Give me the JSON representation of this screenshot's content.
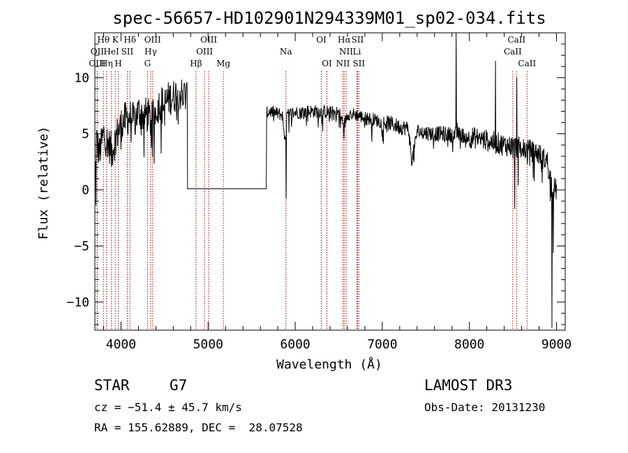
{
  "chart_data": {
    "type": "line",
    "title": "spec-56657-HD102901N294339M01_sp02-034.fits",
    "xlabel": "Wavelength (Å)",
    "ylabel": "Flux (relative)",
    "xlim": [
      3700,
      9100
    ],
    "ylim": [
      -12.5,
      14
    ],
    "x_ticks": [
      4000,
      5000,
      6000,
      7000,
      8000,
      9000
    ],
    "y_ticks": [
      -10,
      -5,
      0,
      5,
      10
    ],
    "x_tick_labels": [
      "4000",
      "5000",
      "6000",
      "7000",
      "8000",
      "9000"
    ],
    "y_tick_labels": [
      "−10",
      "−5",
      "0",
      "5",
      "10"
    ],
    "grid": false,
    "line_color": "#000000",
    "marker_color": "#a00000",
    "spectrum_anchors": [
      [
        3700,
        0.3
      ],
      [
        3720,
        4.5
      ],
      [
        3750,
        3.2
      ],
      [
        3800,
        5.0
      ],
      [
        3850,
        4.1
      ],
      [
        3900,
        3.5
      ],
      [
        3950,
        4.9
      ],
      [
        4000,
        5.8
      ],
      [
        4050,
        6.3
      ],
      [
        4100,
        6.5
      ],
      [
        4150,
        6.2
      ],
      [
        4200,
        7.0
      ],
      [
        4250,
        6.6
      ],
      [
        4300,
        6.8
      ],
      [
        4350,
        6.2
      ],
      [
        4400,
        7.1
      ],
      [
        4450,
        7.8
      ],
      [
        4500,
        7.6
      ],
      [
        4550,
        8.2
      ],
      [
        4600,
        8.3
      ],
      [
        4650,
        8.7
      ],
      [
        4700,
        8.5
      ],
      [
        4760,
        8.3
      ],
      [
        4762,
        0.1
      ],
      [
        5670,
        0.1
      ],
      [
        5672,
        6.8
      ],
      [
        5700,
        7.0
      ],
      [
        5750,
        6.9
      ],
      [
        5800,
        6.8
      ],
      [
        5850,
        6.7
      ],
      [
        5892,
        4.0
      ],
      [
        5895,
        -0.8
      ],
      [
        5900,
        6.6
      ],
      [
        5950,
        6.8
      ],
      [
        6000,
        6.9
      ],
      [
        6100,
        7.0
      ],
      [
        6200,
        7.0
      ],
      [
        6300,
        7.0
      ],
      [
        6400,
        6.9
      ],
      [
        6500,
        6.9
      ],
      [
        6563,
        5.8
      ],
      [
        6600,
        6.8
      ],
      [
        6700,
        6.7
      ],
      [
        6800,
        6.4
      ],
      [
        6900,
        6.3
      ],
      [
        7000,
        6.0
      ],
      [
        7100,
        5.9
      ],
      [
        7200,
        5.6
      ],
      [
        7300,
        5.5
      ],
      [
        7340,
        2.5
      ],
      [
        7400,
        5.2
      ],
      [
        7500,
        5.1
      ],
      [
        7600,
        5.0
      ],
      [
        7700,
        5.0
      ],
      [
        7800,
        4.9
      ],
      [
        7850,
        5.0
      ],
      [
        7900,
        4.9
      ],
      [
        8000,
        4.7
      ],
      [
        8100,
        4.6
      ],
      [
        8200,
        4.4
      ],
      [
        8300,
        4.2
      ],
      [
        8400,
        4.0
      ],
      [
        8500,
        3.9
      ],
      [
        8600,
        3.7
      ],
      [
        8700,
        3.5
      ],
      [
        8800,
        3.2
      ],
      [
        8850,
        2.8
      ],
      [
        8900,
        2.5
      ],
      [
        8950,
        0.3
      ],
      [
        9000,
        0.0
      ]
    ],
    "spectrum_spikes": [
      [
        3712,
        -1.4
      ],
      [
        3890,
        2.1
      ],
      [
        4000,
        3.6
      ],
      [
        4300,
        5.2
      ],
      [
        4340,
        4.8
      ],
      [
        5895,
        -0.8
      ],
      [
        6520,
        5.5
      ],
      [
        6880,
        4.3
      ],
      [
        7340,
        2.4
      ],
      [
        7850,
        14.0
      ],
      [
        7860,
        6.0
      ],
      [
        8300,
        11.5
      ],
      [
        8500,
        2.8
      ],
      [
        8520,
        -1.7
      ],
      [
        8545,
        10.0
      ],
      [
        8560,
        0.4
      ],
      [
        8665,
        2.3
      ],
      [
        8860,
        2.6
      ],
      [
        8930,
        -1.0
      ],
      [
        8950,
        -12.3
      ],
      [
        8965,
        -5.6
      ],
      [
        8985,
        0.2
      ]
    ],
    "line_markers": [
      {
        "label": "Hθ",
        "x": 3798,
        "row": 1
      },
      {
        "label": "OII",
        "x": 3727,
        "row": 2
      },
      {
        "label": "OIII",
        "x": 3727,
        "row": 3
      },
      {
        "label": "K",
        "x": 3934,
        "row": 1
      },
      {
        "label": "HeI",
        "x": 3889,
        "row": 2
      },
      {
        "label": "Hη",
        "x": 3835,
        "row": 3
      },
      {
        "label": "SII",
        "x": 4072,
        "row": 2
      },
      {
        "label": "H",
        "x": 3968,
        "row": 3
      },
      {
        "label": "Hδ",
        "x": 4102,
        "row": 1
      },
      {
        "label": "OIII",
        "x": 4363,
        "row": 1
      },
      {
        "label": "Hγ",
        "x": 4341,
        "row": 2
      },
      {
        "label": "G",
        "x": 4304,
        "row": 3
      },
      {
        "label": "OIII",
        "x": 5007,
        "row": 1
      },
      {
        "label": "OIII",
        "x": 4959,
        "row": 2
      },
      {
        "label": "Hβ",
        "x": 4861,
        "row": 3
      },
      {
        "label": "Mg",
        "x": 5175,
        "row": 3
      },
      {
        "label": "Na",
        "x": 5893,
        "row": 2
      },
      {
        "label": "OI",
        "x": 6300,
        "row": 1
      },
      {
        "label": "OI",
        "x": 6364,
        "row": 3
      },
      {
        "label": "Hα",
        "x": 6563,
        "row": 1
      },
      {
        "label": "SII",
        "x": 6716,
        "row": 1
      },
      {
        "label": "NII",
        "x": 6584,
        "row": 2
      },
      {
        "label": "Li",
        "x": 6708,
        "row": 2
      },
      {
        "label": "NII",
        "x": 6548,
        "row": 3
      },
      {
        "label": "SII",
        "x": 6731,
        "row": 3
      },
      {
        "label": "CaII",
        "x": 8542,
        "row": 1
      },
      {
        "label": "CaII",
        "x": 8498,
        "row": 2
      },
      {
        "label": "CaII",
        "x": 8662,
        "row": 3
      }
    ]
  },
  "info": {
    "object_class": "STAR",
    "subclass": "G7",
    "survey": "LAMOST DR3",
    "cz_text": "cz = −51.4 ± 45.7 km/s",
    "obs_date": "Obs-Date: 20131230",
    "coords": "RA = 155.62889, DEC =  28.07528"
  }
}
